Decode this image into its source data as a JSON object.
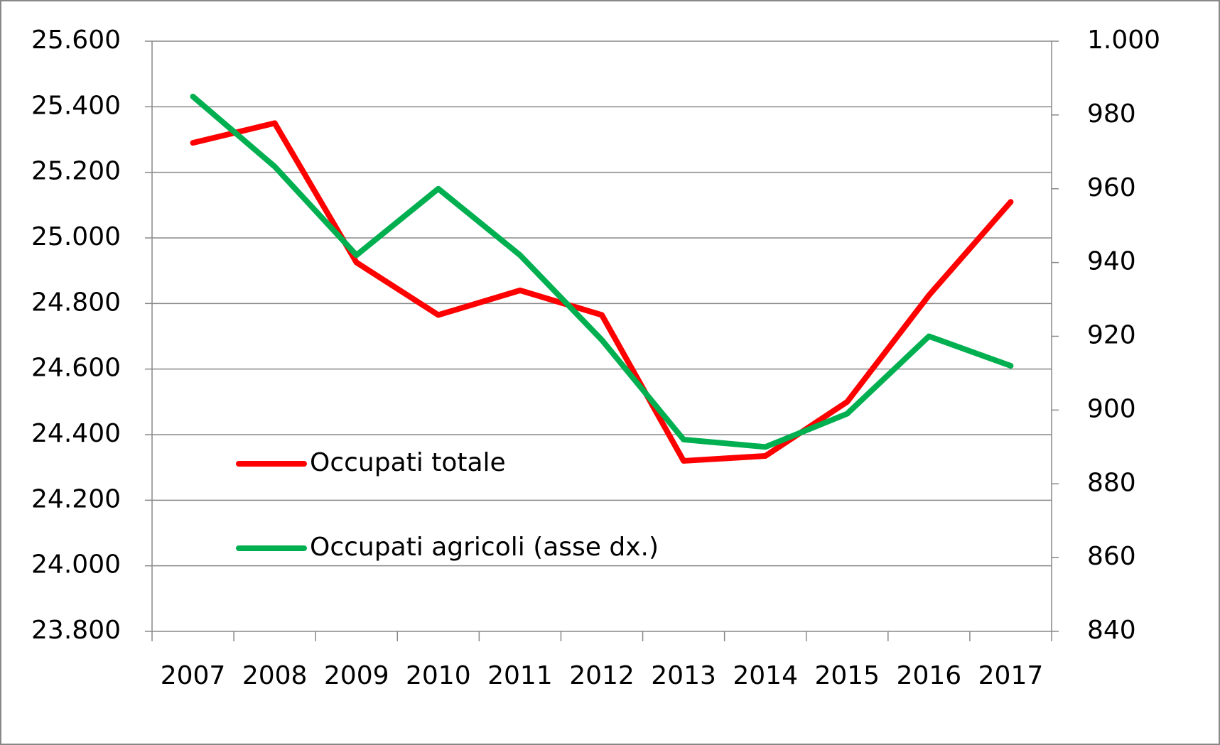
{
  "chart_data": {
    "type": "line",
    "categories": [
      "2007",
      "2008",
      "2009",
      "2010",
      "2011",
      "2012",
      "2013",
      "2014",
      "2015",
      "2016",
      "2017"
    ],
    "series": [
      {
        "name": "Occupati totale",
        "color": "#ff0000",
        "values": [
          25290,
          25350,
          24925,
          24765,
          24840,
          24765,
          24320,
          24335,
          24500,
          24825,
          25110
        ]
      },
      {
        "name": "Occupati agricoli (asse dx.)",
        "color": "#00b050",
        "axis": "y2",
        "values": [
          985,
          966,
          942,
          960,
          942,
          919,
          892,
          890,
          899,
          920,
          912
        ]
      }
    ],
    "ylim": [
      23800,
      25600
    ],
    "yticks": [
      {
        "value": 23800,
        "label": "23.800"
      },
      {
        "value": 24000,
        "label": "24.000"
      },
      {
        "value": 24200,
        "label": "24.200"
      },
      {
        "value": 24400,
        "label": "24.400"
      },
      {
        "value": 24600,
        "label": "24.600"
      },
      {
        "value": 24800,
        "label": "24.800"
      },
      {
        "value": 25000,
        "label": "25.000"
      },
      {
        "value": 25200,
        "label": "25.200"
      },
      {
        "value": 25400,
        "label": "25.400"
      },
      {
        "value": 25600,
        "label": "25.600"
      }
    ],
    "y2lim": [
      840,
      1000
    ],
    "y2ticks": [
      840,
      860,
      880,
      900,
      920,
      940,
      960,
      980,
      {
        "value": 1000,
        "label": "1.000"
      }
    ],
    "grid": true,
    "legend": "inside-lower-left"
  }
}
